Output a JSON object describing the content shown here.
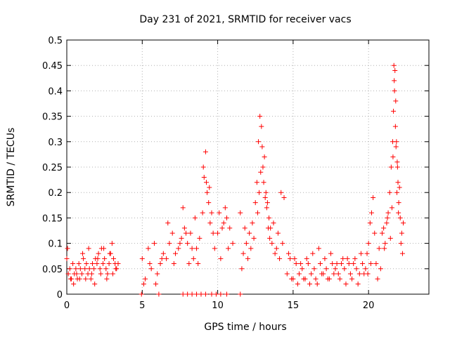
{
  "chart_data": {
    "type": "scatter",
    "title": "Day 231 of 2021, SRMTID for receiver vacs",
    "xlabel": "GPS time / hours",
    "ylabel": "SRMTID / TECUs",
    "xlim": [
      0,
      24
    ],
    "ylim": [
      0,
      0.5
    ],
    "x_ticks": [
      0,
      5,
      10,
      15,
      20
    ],
    "x_tick_labels": [
      "0",
      "5",
      "10",
      "15",
      "20"
    ],
    "y_ticks": [
      0,
      0.05,
      0.1,
      0.15,
      0.2,
      0.25,
      0.3,
      0.35,
      0.4,
      0.45,
      0.5
    ],
    "y_tick_labels": [
      "0",
      "0.05",
      "0.1",
      "0.15",
      "0.2",
      "0.25",
      "0.3",
      "0.35",
      "0.4",
      "0.45",
      "0.5"
    ],
    "grid": true,
    "marker": "+",
    "color": "#ff0000",
    "series": [
      {
        "name": "SRMTID",
        "x": [
          0.0,
          0.1,
          0.2,
          0.3,
          0.4,
          0.5,
          0.6,
          0.7,
          0.8,
          0.9,
          1.0,
          1.1,
          1.2,
          1.3,
          1.4,
          1.5,
          1.6,
          1.7,
          1.8,
          1.9,
          2.0,
          2.1,
          2.2,
          2.3,
          2.4,
          2.5,
          2.6,
          2.7,
          2.8,
          2.9,
          3.0,
          3.1,
          3.2,
          3.3,
          3.4,
          0.05,
          0.25,
          0.45,
          0.65,
          0.85,
          1.05,
          1.25,
          1.45,
          1.65,
          1.85,
          2.05,
          2.25,
          2.45,
          2.65,
          2.85,
          3.05,
          3.25,
          5.0,
          5.2,
          5.4,
          5.6,
          5.8,
          6.0,
          6.2,
          6.4,
          6.6,
          6.8,
          7.0,
          7.2,
          7.4,
          7.6,
          7.8,
          8.0,
          8.2,
          8.4,
          8.6,
          8.8,
          9.0,
          9.1,
          9.2,
          9.3,
          9.4,
          9.5,
          9.6,
          9.8,
          10.0,
          10.2,
          10.4,
          10.6,
          10.8,
          11.0,
          5.1,
          5.5,
          5.9,
          6.3,
          6.7,
          7.1,
          7.5,
          7.7,
          7.9,
          8.1,
          8.3,
          8.5,
          8.7,
          9.05,
          9.25,
          9.45,
          9.7,
          10.1,
          10.3,
          10.5,
          10.7,
          11.5,
          11.7,
          11.9,
          12.1,
          12.3,
          12.5,
          12.6,
          12.7,
          12.8,
          12.9,
          13.0,
          13.1,
          13.2,
          13.3,
          13.4,
          13.5,
          13.6,
          13.8,
          14.0,
          14.2,
          14.4,
          11.6,
          11.8,
          12.0,
          12.2,
          12.4,
          12.65,
          12.75,
          12.85,
          12.95,
          13.05,
          13.15,
          13.25,
          13.35,
          13.45,
          13.7,
          13.9,
          14.1,
          14.3,
          14.6,
          14.8,
          15.0,
          15.2,
          15.4,
          15.6,
          15.8,
          16.0,
          16.2,
          16.4,
          16.6,
          16.8,
          17.0,
          17.2,
          17.4,
          17.6,
          17.8,
          18.0,
          18.2,
          18.4,
          18.6,
          18.8,
          19.0,
          19.2,
          19.4,
          19.6,
          19.8,
          14.7,
          14.9,
          15.1,
          15.3,
          15.5,
          15.7,
          15.9,
          16.1,
          16.3,
          16.5,
          16.7,
          16.9,
          17.1,
          17.3,
          17.5,
          17.7,
          17.9,
          18.1,
          18.3,
          18.5,
          18.7,
          18.9,
          19.1,
          19.3,
          19.5,
          19.7,
          19.9,
          20.0,
          20.1,
          20.2,
          20.3,
          20.5,
          20.7,
          20.9,
          21.0,
          21.1,
          21.2,
          21.3,
          21.4,
          21.5,
          21.6,
          21.65,
          21.7,
          21.75,
          21.8,
          21.85,
          21.9,
          21.95,
          22.0,
          22.1,
          22.2,
          22.3,
          19.95,
          20.15,
          20.4,
          20.6,
          20.8,
          21.05,
          21.25,
          21.45,
          21.55,
          21.62,
          21.68,
          21.72,
          21.78,
          21.82,
          21.88,
          21.92,
          21.98,
          22.05,
          22.15,
          22.25,
          4.95,
          6.1,
          7.7,
          8.0,
          8.3,
          8.6,
          8.9,
          9.2,
          9.6,
          9.9,
          10.2,
          10.6,
          11.5
        ],
        "y": [
          0.07,
          0.04,
          0.05,
          0.03,
          0.06,
          0.04,
          0.05,
          0.03,
          0.06,
          0.05,
          0.04,
          0.07,
          0.05,
          0.06,
          0.04,
          0.05,
          0.03,
          0.06,
          0.05,
          0.07,
          0.06,
          0.08,
          0.05,
          0.09,
          0.06,
          0.07,
          0.05,
          0.04,
          0.06,
          0.08,
          0.1,
          0.07,
          0.06,
          0.05,
          0.06,
          0.09,
          0.03,
          0.02,
          0.04,
          0.03,
          0.08,
          0.03,
          0.09,
          0.04,
          0.02,
          0.07,
          0.04,
          0.09,
          0.03,
          0.08,
          0.04,
          0.05,
          0.07,
          0.03,
          0.09,
          0.05,
          0.1,
          0.04,
          0.06,
          0.08,
          0.07,
          0.1,
          0.12,
          0.08,
          0.09,
          0.11,
          0.13,
          0.1,
          0.12,
          0.07,
          0.09,
          0.11,
          0.16,
          0.23,
          0.28,
          0.2,
          0.18,
          0.14,
          0.16,
          0.09,
          0.12,
          0.07,
          0.14,
          0.15,
          0.13,
          0.1,
          0.02,
          0.06,
          0.02,
          0.07,
          0.14,
          0.06,
          0.1,
          0.17,
          0.12,
          0.06,
          0.09,
          0.15,
          0.06,
          0.25,
          0.22,
          0.21,
          0.12,
          0.16,
          0.13,
          0.17,
          0.09,
          0.16,
          0.08,
          0.1,
          0.12,
          0.14,
          0.18,
          0.22,
          0.3,
          0.35,
          0.33,
          0.25,
          0.27,
          0.2,
          0.18,
          0.15,
          0.13,
          0.1,
          0.08,
          0.12,
          0.2,
          0.19,
          0.05,
          0.13,
          0.07,
          0.09,
          0.11,
          0.16,
          0.2,
          0.24,
          0.29,
          0.22,
          0.19,
          0.17,
          0.13,
          0.11,
          0.14,
          0.09,
          0.07,
          0.1,
          0.04,
          0.07,
          0.03,
          0.06,
          0.04,
          0.05,
          0.03,
          0.06,
          0.04,
          0.05,
          0.02,
          0.06,
          0.04,
          0.05,
          0.03,
          0.06,
          0.05,
          0.04,
          0.06,
          0.05,
          0.07,
          0.04,
          0.06,
          0.05,
          0.04,
          0.06,
          0.05,
          0.08,
          0.03,
          0.07,
          0.02,
          0.06,
          0.03,
          0.07,
          0.02,
          0.08,
          0.03,
          0.09,
          0.04,
          0.07,
          0.03,
          0.08,
          0.04,
          0.06,
          0.03,
          0.07,
          0.02,
          0.06,
          0.03,
          0.07,
          0.02,
          0.08,
          0.04,
          0.08,
          0.1,
          0.14,
          0.16,
          0.19,
          0.06,
          0.09,
          0.12,
          0.13,
          0.1,
          0.14,
          0.16,
          0.2,
          0.25,
          0.3,
          0.36,
          0.42,
          0.44,
          0.38,
          0.3,
          0.26,
          0.22,
          0.18,
          0.15,
          0.12,
          0.14,
          0.04,
          0.06,
          0.12,
          0.03,
          0.05,
          0.09,
          0.15,
          0.11,
          0.17,
          0.27,
          0.45,
          0.4,
          0.33,
          0.29,
          0.2,
          0.25,
          0.16,
          0.21,
          0.1,
          0.08,
          0.0,
          0.0,
          0.0,
          0.0,
          0.0,
          0.0,
          0.0,
          0.0,
          0.0,
          0.0,
          0.0,
          0.0,
          0.0
        ]
      }
    ]
  }
}
